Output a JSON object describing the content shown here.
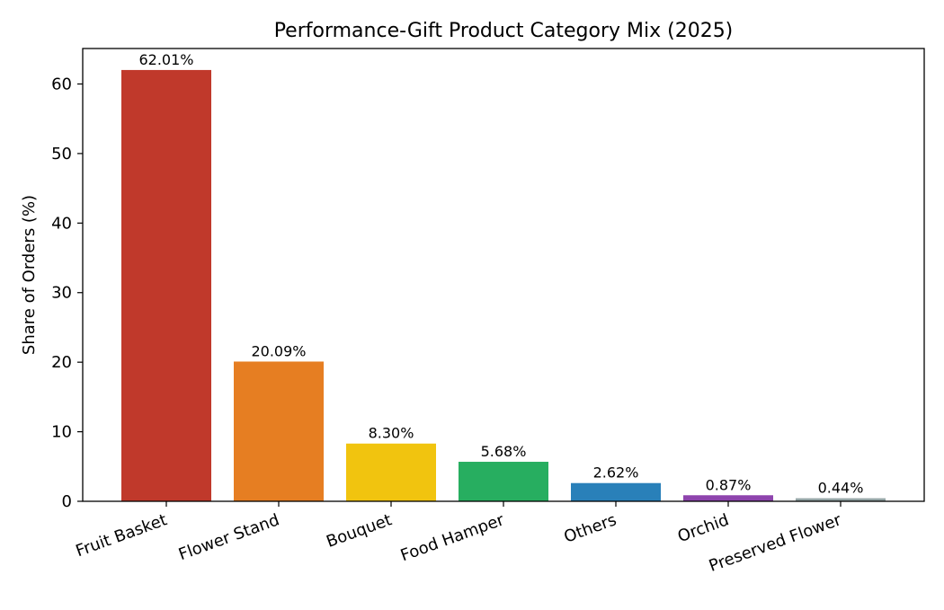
{
  "chart_data": {
    "type": "bar",
    "title": "Performance-Gift Product Category Mix (2025)",
    "xlabel": "",
    "ylabel": "Share of Orders (%)",
    "categories": [
      "Fruit Basket",
      "Flower Stand",
      "Bouquet",
      "Food Hamper",
      "Others",
      "Orchid",
      "Preserved Flower"
    ],
    "values": [
      62.01,
      20.09,
      8.3,
      5.68,
      2.62,
      0.87,
      0.44
    ],
    "value_labels": [
      "62.01%",
      "20.09%",
      "8.30%",
      "5.68%",
      "2.62%",
      "0.87%",
      "0.44%"
    ],
    "colors": [
      "#c0392b",
      "#e67e22",
      "#f1c40f",
      "#27ae60",
      "#2980b9",
      "#8e44ad",
      "#95a5a6"
    ],
    "ylim": [
      0,
      65.1
    ],
    "yticks": [
      0,
      10,
      20,
      30,
      40,
      50,
      60
    ],
    "grid": false,
    "legend": "none"
  }
}
